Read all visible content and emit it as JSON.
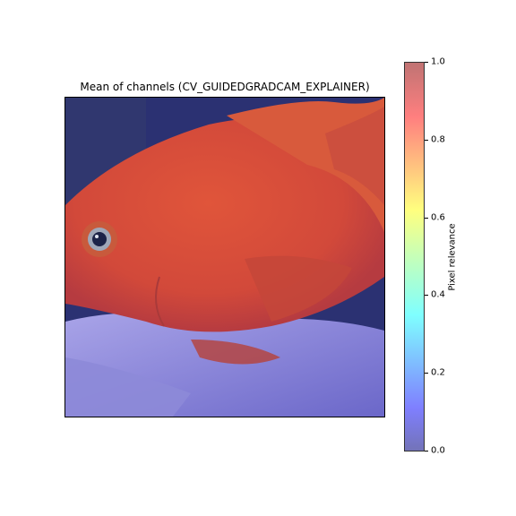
{
  "chart_data": {
    "type": "heatmap",
    "title": "Mean of channels (CV_GUIDEDGRADCAM_EXPLAINER)",
    "image_subject": "red parrot cichlid fish overlaid with relevance heatmap",
    "colorbar": {
      "label": "Pixel relevance",
      "ticks": [
        "0.0",
        "0.2",
        "0.4",
        "0.6",
        "0.8",
        "1.0"
      ],
      "tick_values": [
        0.0,
        0.2,
        0.4,
        0.6,
        0.8,
        1.0
      ],
      "range": [
        0.0,
        1.0
      ],
      "colormap": "jet",
      "colors": [
        "#7373b8",
        "#7f7fff",
        "#7fffff",
        "#ffff7f",
        "#ff7f7f",
        "#c07373"
      ]
    }
  }
}
